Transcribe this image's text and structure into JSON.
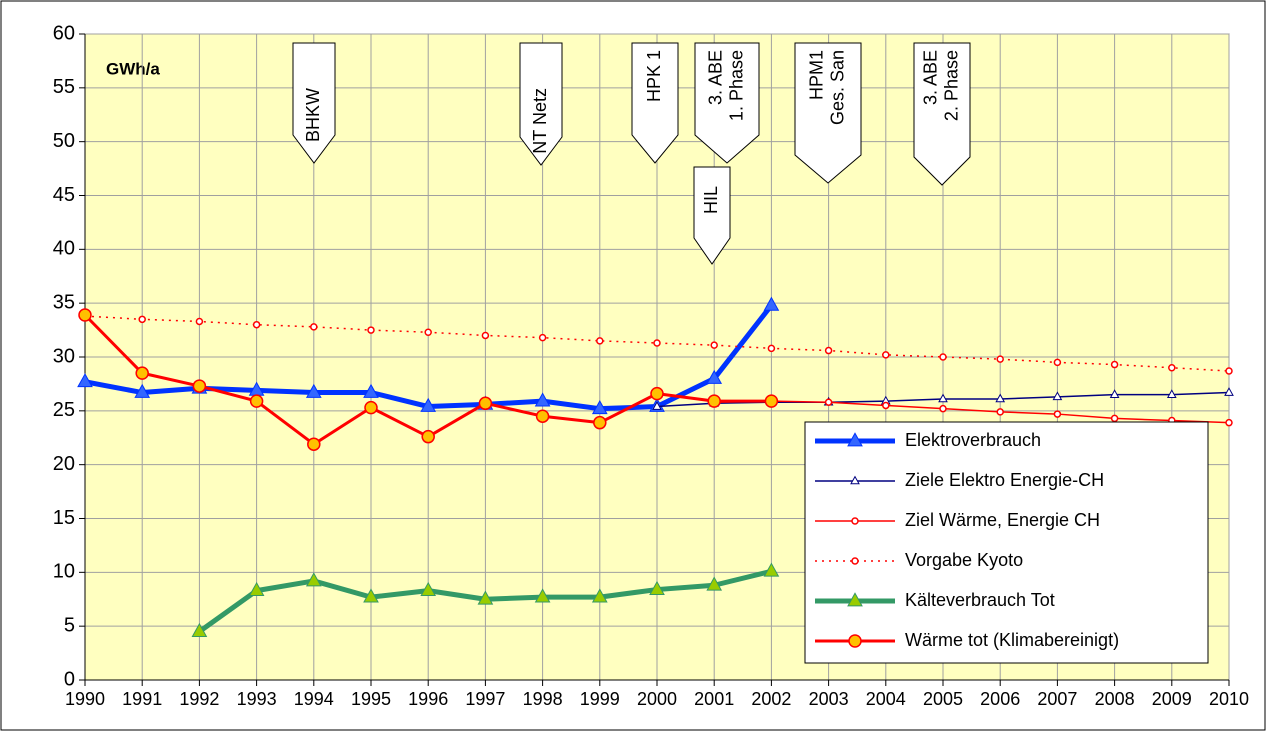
{
  "chart_data": {
    "type": "line",
    "unit_label": "GWh/a",
    "x": [
      1990,
      1991,
      1992,
      1993,
      1994,
      1995,
      1996,
      1997,
      1998,
      1999,
      2000,
      2001,
      2002,
      2003,
      2004,
      2005,
      2006,
      2007,
      2008,
      2009,
      2010
    ],
    "xlim": [
      1990,
      2010
    ],
    "xticks": [
      1990,
      1991,
      1992,
      1993,
      1994,
      1995,
      1996,
      1997,
      1998,
      1999,
      2000,
      2001,
      2002,
      2003,
      2004,
      2005,
      2006,
      2007,
      2008,
      2009,
      2010
    ],
    "ylim": [
      0,
      60
    ],
    "yticks": [
      0,
      5,
      10,
      15,
      20,
      25,
      30,
      35,
      40,
      45,
      50,
      55,
      60
    ],
    "grid": true,
    "legend": "lower right",
    "series": [
      {
        "name": "Elektroverbrauch",
        "color": "#0033ff",
        "line_width": 5,
        "marker": "triangle",
        "marker_fill": "#3366ff",
        "marker_size": 7,
        "dashed": false,
        "values": [
          27.7,
          26.7,
          27.1,
          26.9,
          26.7,
          26.7,
          25.4,
          25.6,
          25.9,
          25.2,
          25.4,
          28.0,
          34.8,
          null,
          null,
          null,
          null,
          null,
          null,
          null,
          null
        ]
      },
      {
        "name": "Ziele Elektro Energie-CH",
        "color": "#000080",
        "line_width": 1.5,
        "marker": "triangle",
        "marker_fill": "#ffffff",
        "marker_size": 4,
        "dashed": false,
        "values": [
          null,
          null,
          null,
          null,
          null,
          null,
          null,
          null,
          null,
          null,
          25.4,
          25.7,
          25.8,
          25.8,
          25.9,
          26.1,
          26.1,
          26.3,
          26.5,
          26.5,
          26.7
        ]
      },
      {
        "name": "Ziel Wärme, Energie CH",
        "color": "#ff0000",
        "line_width": 1.5,
        "marker": "circle",
        "marker_fill": "#ffffff",
        "marker_size": 3,
        "dashed": false,
        "values": [
          null,
          null,
          null,
          null,
          null,
          null,
          null,
          null,
          null,
          null,
          null,
          25.8,
          25.9,
          25.8,
          25.5,
          25.2,
          24.9,
          24.7,
          24.3,
          24.1,
          23.9
        ]
      },
      {
        "name": "Vorgabe Kyoto",
        "color": "#ff0000",
        "line_width": 1.5,
        "marker": "circle",
        "marker_fill": "#ffffff",
        "marker_size": 3,
        "dashed": true,
        "values": [
          33.8,
          33.5,
          33.3,
          33.0,
          32.8,
          32.5,
          32.3,
          32.0,
          31.8,
          31.5,
          31.3,
          31.1,
          30.8,
          30.6,
          30.2,
          30.0,
          29.8,
          29.5,
          29.3,
          29.0,
          28.7
        ]
      },
      {
        "name": "Kälteverbrauch Tot",
        "color": "#339966",
        "line_width": 5,
        "marker": "triangle",
        "marker_fill": "#99cc00",
        "marker_size": 7,
        "dashed": false,
        "values": [
          null,
          null,
          4.5,
          8.3,
          9.2,
          7.7,
          8.3,
          7.5,
          7.7,
          7.7,
          8.4,
          8.8,
          10.1,
          null,
          null,
          null,
          null,
          null,
          null,
          null,
          null
        ]
      },
      {
        "name": "Wärme tot (Klimabereinigt)",
        "color": "#ff0000",
        "line_width": 3,
        "marker": "circle",
        "marker_fill": "#ffc000",
        "marker_size": 6,
        "dashed": false,
        "values": [
          33.9,
          28.5,
          27.3,
          25.9,
          21.9,
          25.3,
          22.6,
          25.7,
          24.5,
          23.9,
          26.6,
          25.9,
          25.9,
          null,
          null,
          null,
          null,
          null,
          null,
          null,
          null
        ]
      }
    ],
    "annotations": [
      {
        "lines": [
          "BHKW"
        ]
      },
      {
        "lines": [
          "NT Netz"
        ]
      },
      {
        "lines": [
          "HPK 1"
        ]
      },
      {
        "lines": [
          "3. ABE",
          "1. Phase"
        ]
      },
      {
        "lines": [
          "HIL"
        ]
      },
      {
        "lines": [
          "HPM1",
          "Ges. San"
        ]
      },
      {
        "lines": [
          "3. ABE",
          "2. Phase"
        ]
      }
    ]
  }
}
